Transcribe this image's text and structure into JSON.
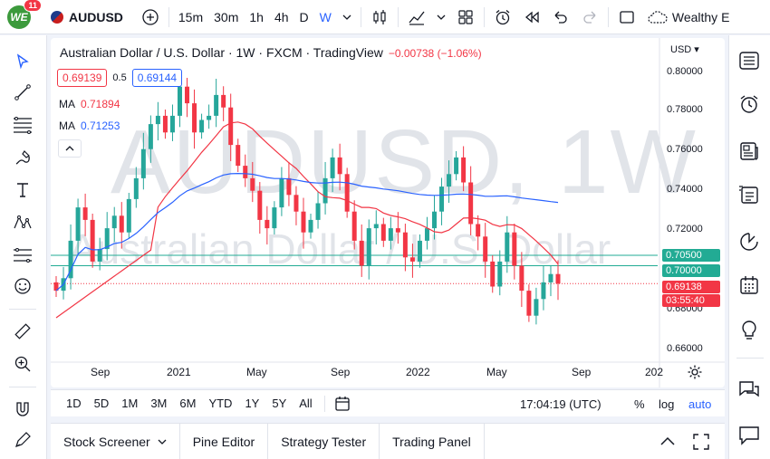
{
  "topbar": {
    "badge_count": "11",
    "logo_text": "WE",
    "symbol": "AUDUSD",
    "intervals": [
      "15m",
      "30m",
      "1h",
      "4h",
      "D",
      "W"
    ],
    "account_label": "Wealthy E"
  },
  "legend": {
    "title": "Australian Dollar / U.S. Dollar · 1W · FXCM · TradingView",
    "change": "−0.00738 (−1.06%)",
    "bid": "0.69139",
    "spread": "0.5",
    "ask": "0.69144",
    "ma1_label": "MA",
    "ma1_value": "0.71894",
    "ma2_label": "MA",
    "ma2_value": "0.71253"
  },
  "watermark": {
    "symbol": "AUDUSD, 1W",
    "name": "Australian Dollar / U.S. Dollar"
  },
  "price_axis": {
    "currency": "USD",
    "ticks": [
      "0.80000",
      "0.78000",
      "0.76000",
      "0.74000",
      "0.72000",
      "0.68000",
      "0.66000"
    ],
    "level1": "0.70500",
    "level2": "0.70000",
    "last_price": "0.69138",
    "countdown": "03:55:40"
  },
  "time_axis": {
    "labels": [
      "Sep",
      "2021",
      "May",
      "Sep",
      "2022",
      "May",
      "Sep",
      "202"
    ]
  },
  "bottom": {
    "ranges": [
      "1D",
      "5D",
      "1M",
      "3M",
      "6M",
      "YTD",
      "1Y",
      "5Y",
      "All"
    ],
    "clock": "17:04:19 (UTC)",
    "percent": "%",
    "log": "log",
    "auto": "auto"
  },
  "panels": {
    "tabs": [
      "Stock Screener",
      "Pine Editor",
      "Strategy Tester",
      "Trading Panel"
    ]
  },
  "colors": {
    "up": "#26a69a",
    "down": "#f23645",
    "ma_fast": "#f23645",
    "ma_slow": "#2962ff",
    "level_line": "#22ab94",
    "accent": "#2962ff"
  },
  "chart_data": {
    "type": "candlestick",
    "interval": "1W",
    "y_range": [
      0.655,
      0.805
    ],
    "series_close_approx": [
      0.688,
      0.694,
      0.712,
      0.728,
      0.722,
      0.702,
      0.708,
      0.718,
      0.724,
      0.716,
      0.732,
      0.742,
      0.756,
      0.768,
      0.772,
      0.764,
      0.772,
      0.786,
      0.778,
      0.764,
      0.77,
      0.772,
      0.782,
      0.776,
      0.758,
      0.748,
      0.742,
      0.736,
      0.722,
      0.718,
      0.728,
      0.742,
      0.734,
      0.726,
      0.716,
      0.722,
      0.73,
      0.742,
      0.752,
      0.744,
      0.726,
      0.712,
      0.7,
      0.718,
      0.72,
      0.712,
      0.718,
      0.716,
      0.704,
      0.702,
      0.712,
      0.718,
      0.726,
      0.738,
      0.744,
      0.752,
      0.74,
      0.72,
      0.714,
      0.702,
      0.69,
      0.702,
      0.716,
      0.7,
      0.688,
      0.676,
      0.684,
      0.692,
      0.696,
      0.6914
    ],
    "ma_fast_label": "MA 0.71894",
    "ma_slow_label": "MA 0.71253",
    "horizontal_levels": [
      0.705,
      0.7
    ]
  }
}
